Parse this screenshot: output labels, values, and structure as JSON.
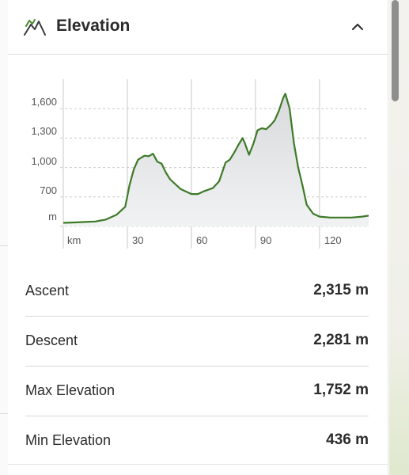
{
  "panel": {
    "title": "Elevation",
    "icon": "mountain-icon",
    "collapse_icon": "chevron-up-icon"
  },
  "chart_data": {
    "type": "area",
    "title": "",
    "xlabel": "km",
    "ylabel": "m",
    "x_ticks": [
      30,
      60,
      90,
      120
    ],
    "x_tick_labels": [
      "30",
      "60",
      "90",
      "120"
    ],
    "y_ticks": [
      700,
      1000,
      1300,
      1600
    ],
    "y_tick_labels": [
      "700",
      "1,000",
      "1,300",
      "1,600"
    ],
    "xlim": [
      0,
      143
    ],
    "ylim": [
      400,
      1900
    ],
    "grid": true,
    "line_color": "#3d7a28",
    "fill_color": "#e7e8ea",
    "series": [
      {
        "x": [
          0,
          5,
          10,
          15,
          20,
          25,
          29,
          31,
          33,
          35,
          38,
          40,
          42,
          44,
          46,
          48,
          50,
          55,
          60,
          63,
          66,
          70,
          73,
          76,
          78,
          80,
          82,
          84,
          85,
          87,
          89,
          91,
          93,
          95,
          97,
          99,
          101,
          103,
          104,
          106,
          108,
          110,
          112,
          114,
          117,
          120,
          125,
          130,
          135,
          140,
          143
        ],
        "y": [
          436,
          440,
          445,
          450,
          470,
          520,
          600,
          820,
          980,
          1080,
          1120,
          1115,
          1140,
          1060,
          1040,
          950,
          880,
          780,
          730,
          730,
          760,
          790,
          860,
          1050,
          1080,
          1150,
          1230,
          1300,
          1250,
          1130,
          1240,
          1380,
          1400,
          1390,
          1430,
          1480,
          1580,
          1710,
          1752,
          1600,
          1250,
          1000,
          820,
          620,
          530,
          500,
          490,
          490,
          490,
          500,
          510
        ]
      }
    ]
  },
  "stats": [
    {
      "label": "Ascent",
      "value": "2,315 m"
    },
    {
      "label": "Descent",
      "value": "2,281 m"
    },
    {
      "label": "Max Elevation",
      "value": "1,752 m"
    },
    {
      "label": "Min Elevation",
      "value": "436 m"
    }
  ]
}
